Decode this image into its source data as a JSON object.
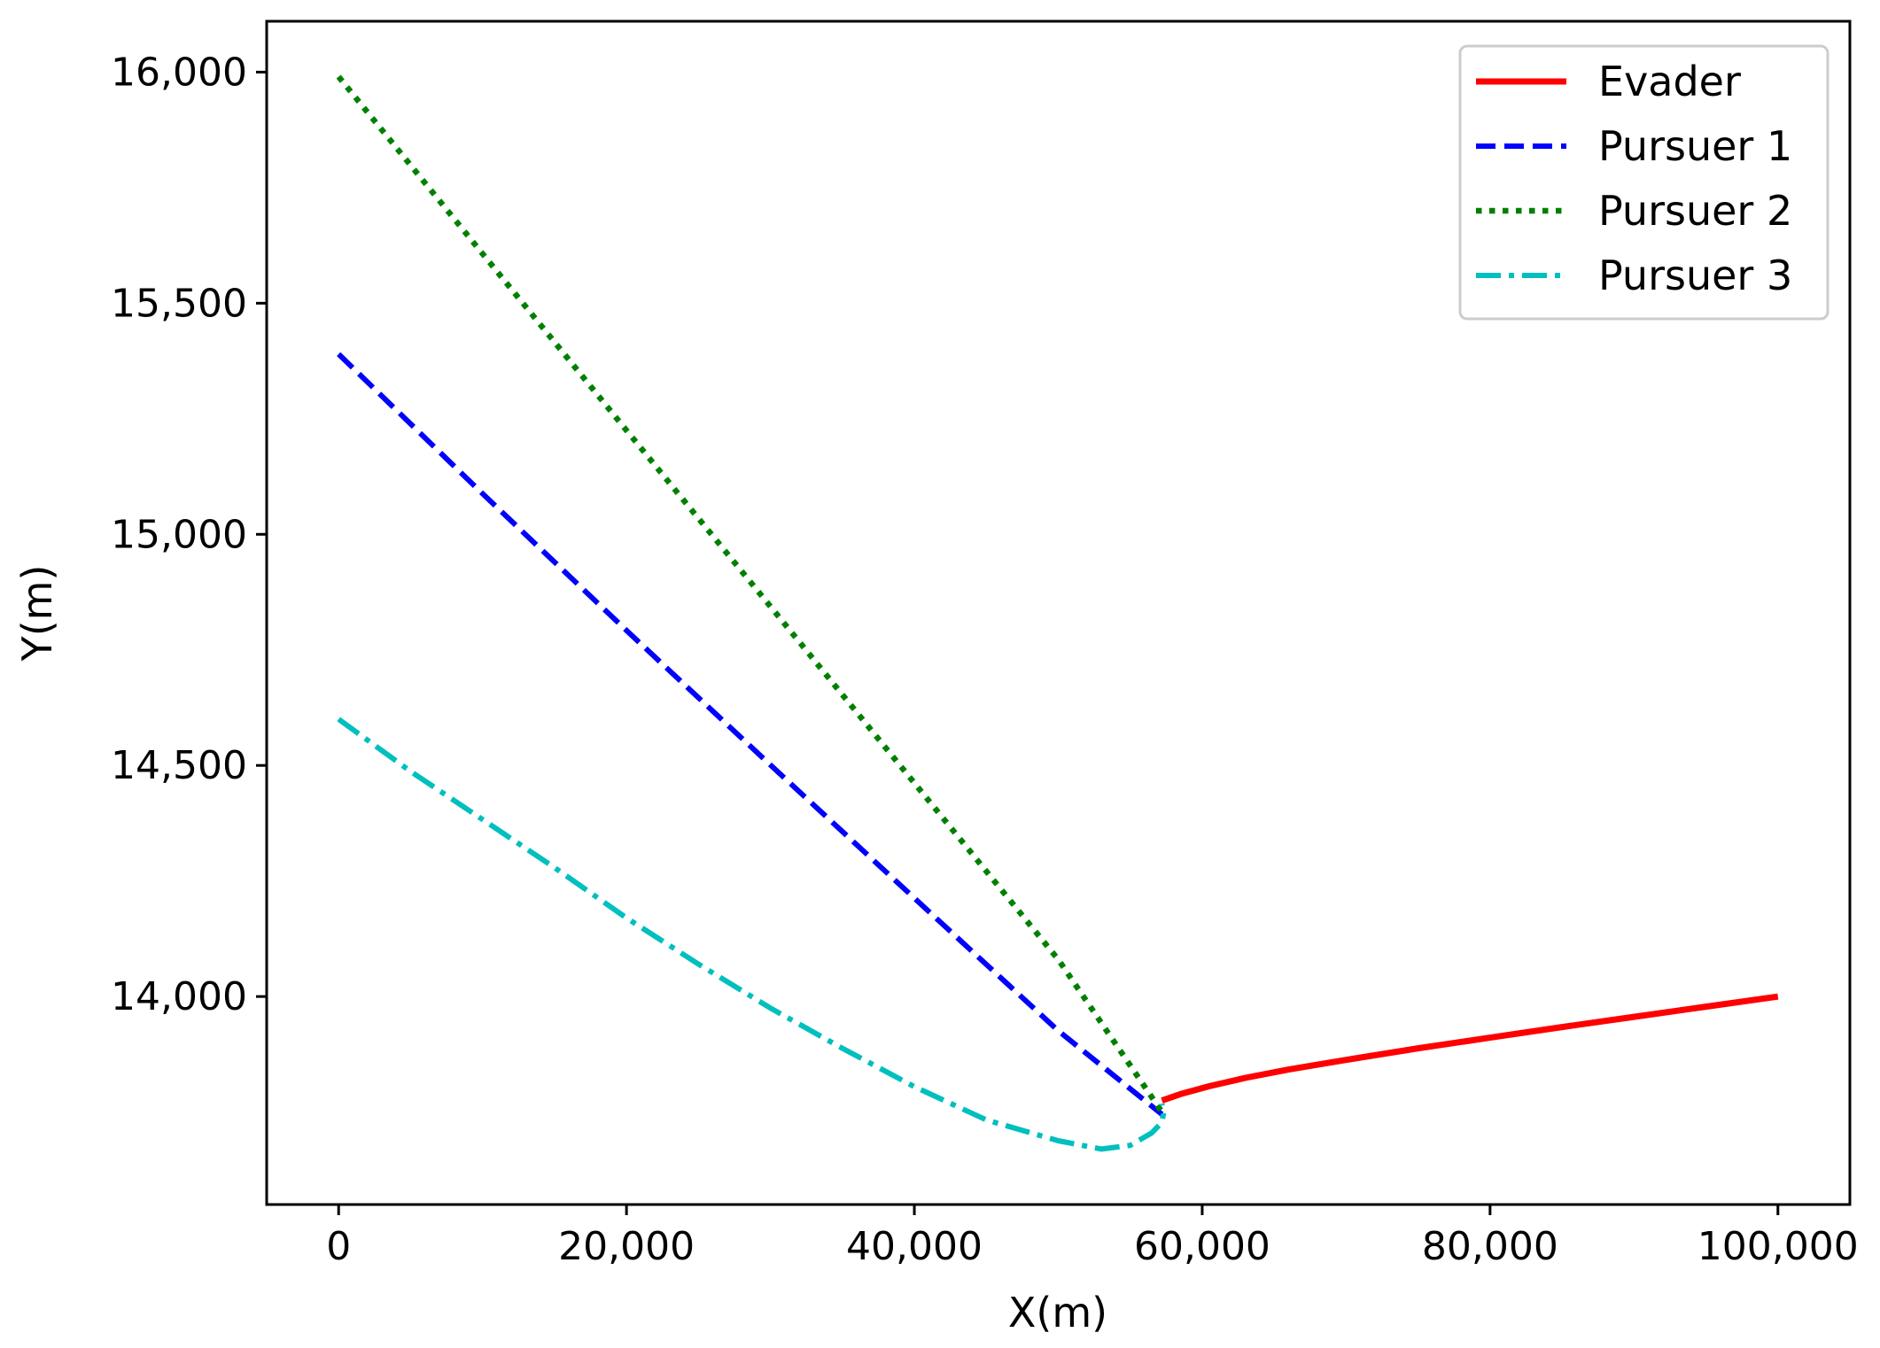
{
  "chart_data": {
    "type": "line",
    "xlabel": "X(m)",
    "ylabel": "Y(m)",
    "xlim": [
      -5000,
      105000
    ],
    "ylim": [
      13550,
      16110
    ],
    "xticks": [
      {
        "value": 0,
        "label": "0"
      },
      {
        "value": 20000,
        "label": "20,000"
      },
      {
        "value": 40000,
        "label": "40,000"
      },
      {
        "value": 60000,
        "label": "60,000"
      },
      {
        "value": 80000,
        "label": "80,000"
      },
      {
        "value": 100000,
        "label": "100,000"
      }
    ],
    "yticks": [
      {
        "value": 14000,
        "label": "14,000"
      },
      {
        "value": 14500,
        "label": "14,500"
      },
      {
        "value": 15000,
        "label": "15,000"
      },
      {
        "value": 15500,
        "label": "15,500"
      },
      {
        "value": 16000,
        "label": "16,000"
      }
    ],
    "grid": false,
    "legend_position": "top-right",
    "series": [
      {
        "name": "Evader",
        "color": "#ff0000",
        "style": "solid",
        "x": [
          100000,
          95000,
          90000,
          85000,
          80000,
          75000,
          70000,
          66000,
          63000,
          60500,
          58500,
          57200
        ],
        "y": [
          14000,
          13978,
          13956,
          13934,
          13911,
          13888,
          13863,
          13842,
          13824,
          13806,
          13789,
          13775
        ]
      },
      {
        "name": "Pursuer 1",
        "color": "#0000ff",
        "style": "dashed",
        "x": [
          0,
          10000,
          20000,
          30000,
          40000,
          50000,
          57200
        ],
        "y": [
          15390,
          15088,
          14792,
          14501,
          14213,
          13926,
          13745
        ]
      },
      {
        "name": "Pursuer 2",
        "color": "#008000",
        "style": "dotted",
        "x": [
          0,
          10000,
          20000,
          30000,
          40000,
          50000,
          57200
        ],
        "y": [
          15990,
          15607,
          15225,
          14844,
          14462,
          14080,
          13750
        ]
      },
      {
        "name": "Pursuer 3",
        "color": "#00bfbf",
        "style": "dashdot",
        "x": [
          0,
          5000,
          10000,
          15000,
          20000,
          25000,
          30000,
          35000,
          40000,
          45000,
          50000,
          53000,
          55000,
          56500,
          57200,
          57300,
          57200
        ],
        "y": [
          14600,
          14487,
          14383,
          14279,
          14170,
          14070,
          13975,
          13888,
          13805,
          13733,
          13688,
          13670,
          13678,
          13705,
          13728,
          13745,
          13768
        ]
      }
    ]
  }
}
